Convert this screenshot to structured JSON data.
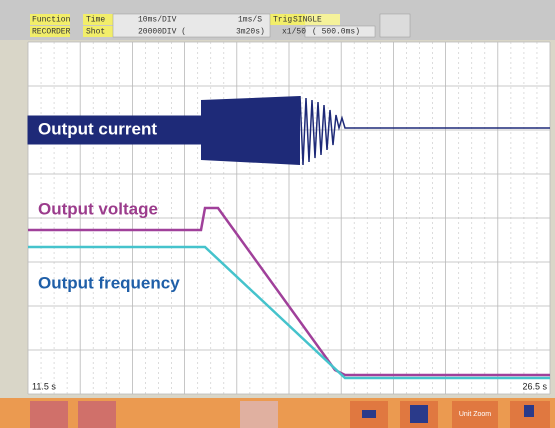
{
  "header": {
    "function_label": "Function",
    "function_value": "RECORDER",
    "time_label": "Time",
    "shot_label": "Shot",
    "time_div": "10ms/DIV",
    "sample": "1ms/S",
    "trig_label": "Trig",
    "trig_value": "SINGLE",
    "shot_div": "20000DIV (",
    "shot_time": "3m20s)",
    "zoom": "x1/50",
    "zoom_time": "( 500.0ms)"
  },
  "traces": {
    "current": "Output current",
    "voltage": "Output voltage",
    "frequency": "Output frequency"
  },
  "axis": {
    "start": "11.5 s",
    "end": "26.5 s"
  },
  "toolbar": {
    "zoom_button": "Unit Zoom"
  }
}
